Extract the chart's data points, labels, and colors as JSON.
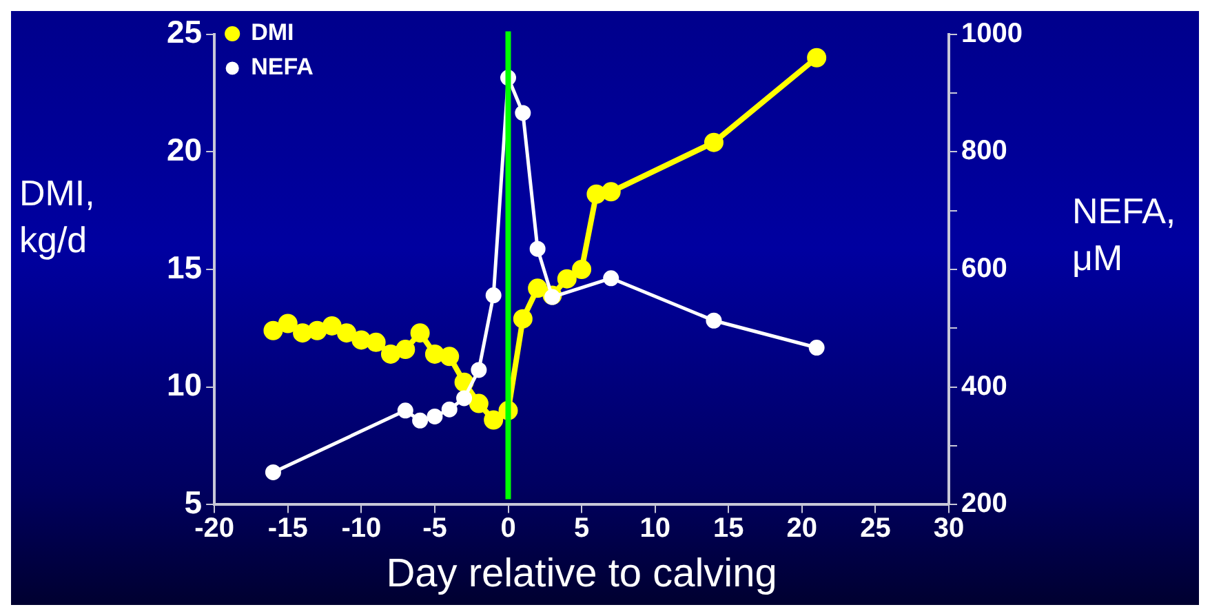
{
  "chart_data": {
    "type": "line",
    "xlabel": "Day relative to calving",
    "ylabel": "DMI, kg/d",
    "y2label": "NEFA, μM",
    "xlim": [
      -20,
      30
    ],
    "xticks": [
      -20,
      -15,
      -10,
      -5,
      0,
      5,
      10,
      15,
      20,
      25,
      30
    ],
    "ylim": [
      5,
      25
    ],
    "yticks": [
      5,
      10,
      15,
      20,
      25
    ],
    "y2lim": [
      200,
      1000
    ],
    "y2ticks": [
      200,
      {
        "value": 300,
        "label": null
      },
      400,
      {
        "value": 500,
        "label": null
      },
      600,
      {
        "value": 700,
        "label": null
      },
      800,
      {
        "value": 900,
        "label": null
      },
      1000
    ],
    "marker": "circle",
    "grid": false,
    "legend": "top left",
    "ref_lines": [
      {
        "axis": "x",
        "value": 0,
        "color": "#00ff00"
      }
    ],
    "series": [
      {
        "name": "DMI",
        "color": "#ffff00",
        "x": [
          -16,
          -15,
          -14,
          -13,
          -12,
          -11,
          -10,
          -9,
          -8,
          -7,
          -6,
          -5,
          -4,
          -3,
          -2,
          -1,
          0,
          1,
          2,
          3,
          4,
          5,
          6,
          7,
          14,
          21
        ],
        "values": [
          12.4,
          12.7,
          12.3,
          12.4,
          12.6,
          12.3,
          12.0,
          11.9,
          11.4,
          11.6,
          12.3,
          11.4,
          11.3,
          10.2,
          9.3,
          8.6,
          9.0,
          12.9,
          14.2,
          13.9,
          14.6,
          15.0,
          18.2,
          18.3,
          20.4,
          24.0
        ]
      },
      {
        "name": "NEFA",
        "color": "#ffffff",
        "axis": "y2",
        "x": [
          -16,
          -7,
          -6,
          -5,
          -4,
          -3,
          -2,
          -1,
          0,
          1,
          2,
          3,
          7,
          14,
          21
        ],
        "values": [
          255,
          360,
          343,
          350,
          362,
          381,
          429,
          556,
          926,
          866,
          635,
          553,
          585,
          513,
          467
        ]
      }
    ]
  }
}
